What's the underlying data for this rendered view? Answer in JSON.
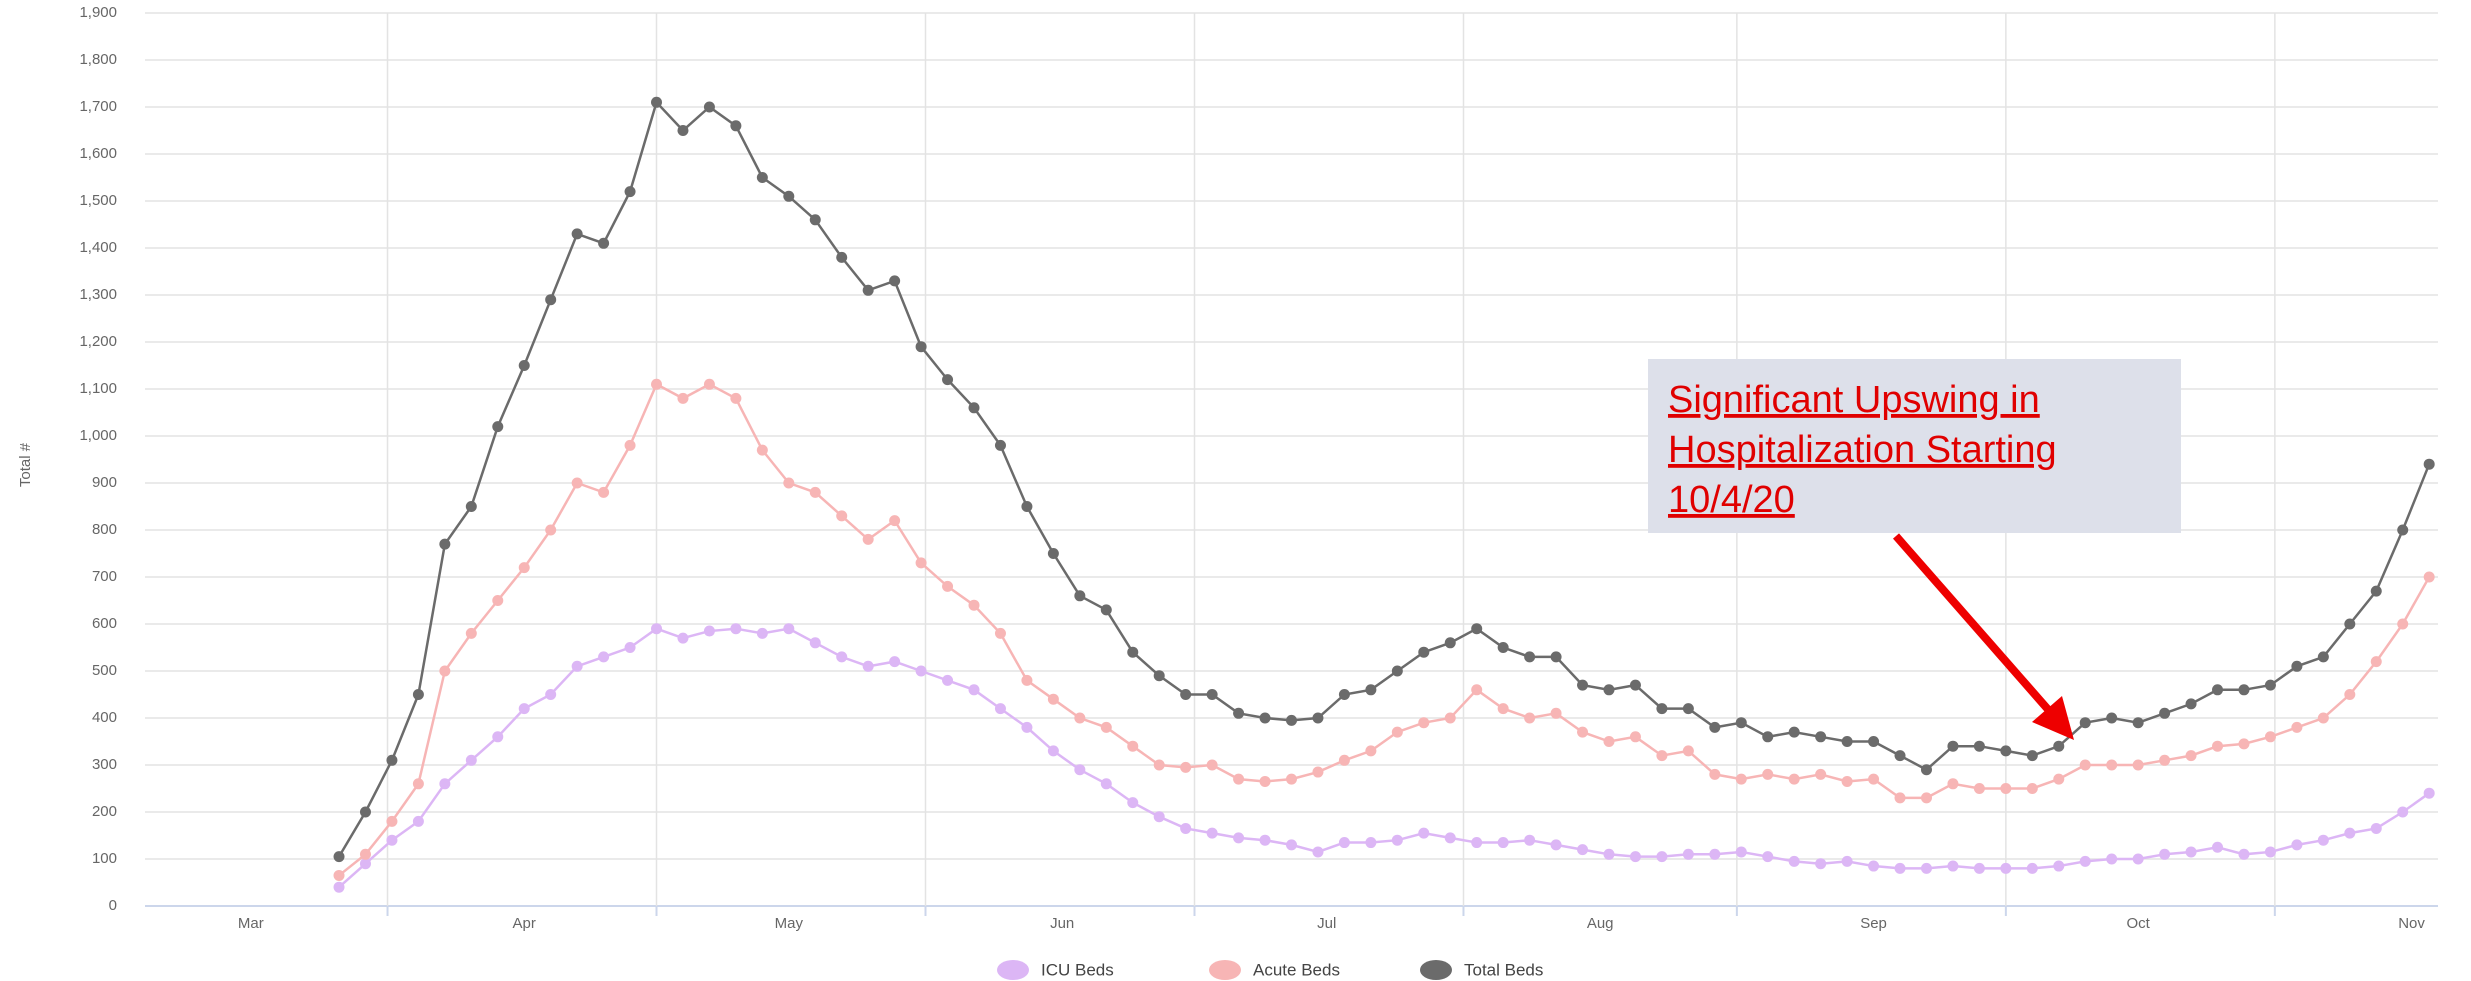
{
  "chart_data": {
    "type": "line",
    "y_label": "Total #",
    "xlim": [
      3,
      263
    ],
    "xticks": [
      {
        "value": 15,
        "label": "Mar"
      },
      {
        "value": 46,
        "label": "Apr"
      },
      {
        "value": 76,
        "label": "May"
      },
      {
        "value": 107,
        "label": "Jun"
      },
      {
        "value": 137,
        "label": "Jul"
      },
      {
        "value": 168,
        "label": "Aug"
      },
      {
        "value": 199,
        "label": "Sep"
      },
      {
        "value": 229,
        "label": "Oct"
      },
      {
        "value": 260,
        "label": "Nov"
      }
    ],
    "ylim": [
      0,
      1900
    ],
    "yticks": [
      0,
      100,
      200,
      300,
      400,
      500,
      600,
      700,
      800,
      900,
      {
        "value": 1000,
        "label": "1,000"
      },
      {
        "value": 1100,
        "label": "1,100"
      },
      {
        "value": 1200,
        "label": "1,200"
      },
      {
        "value": 1300,
        "label": "1,300"
      },
      {
        "value": 1400,
        "label": "1,400"
      },
      {
        "value": 1500,
        "label": "1,500"
      },
      {
        "value": 1600,
        "label": "1,600"
      },
      {
        "value": 1700,
        "label": "1,700"
      },
      {
        "value": 1800,
        "label": "1,800"
      },
      {
        "value": 1900,
        "label": "1,900"
      }
    ],
    "grid": true,
    "x": [
      25,
      28,
      31,
      34,
      37,
      40,
      43,
      46,
      49,
      52,
      55,
      58,
      61,
      64,
      67,
      70,
      73,
      76,
      79,
      82,
      85,
      88,
      91,
      94,
      97,
      100,
      103,
      106,
      109,
      112,
      115,
      118,
      121,
      124,
      127,
      130,
      133,
      136,
      139,
      142,
      145,
      148,
      151,
      154,
      157,
      160,
      163,
      166,
      169,
      172,
      175,
      178,
      181,
      184,
      187,
      190,
      193,
      196,
      199,
      202,
      205,
      208,
      211,
      214,
      217,
      220,
      223,
      226,
      229,
      232,
      235,
      238,
      241,
      244,
      247,
      250,
      253,
      256,
      259,
      262
    ],
    "series": [
      {
        "name": "ICU Beds",
        "color": "#dcb6f5",
        "values": [
          40,
          90,
          140,
          180,
          260,
          310,
          360,
          420,
          450,
          510,
          530,
          550,
          590,
          570,
          585,
          590,
          580,
          590,
          560,
          530,
          510,
          520,
          500,
          480,
          460,
          420,
          380,
          330,
          290,
          260,
          220,
          190,
          165,
          155,
          145,
          140,
          130,
          115,
          135,
          135,
          140,
          155,
          145,
          135,
          135,
          140,
          130,
          120,
          110,
          105,
          105,
          110,
          110,
          115,
          105,
          95,
          90,
          95,
          85,
          80,
          80,
          85,
          80,
          80,
          80,
          85,
          95,
          100,
          100,
          110,
          115,
          125,
          110,
          115,
          130,
          140,
          155,
          165,
          200,
          240
        ]
      },
      {
        "name": "Acute Beds",
        "color": "#f7b5b5",
        "values": [
          65,
          110,
          180,
          260,
          500,
          580,
          650,
          720,
          800,
          900,
          880,
          980,
          1110,
          1080,
          1110,
          1080,
          970,
          900,
          880,
          830,
          780,
          820,
          730,
          680,
          640,
          580,
          480,
          440,
          400,
          380,
          340,
          300,
          295,
          300,
          270,
          265,
          270,
          285,
          310,
          330,
          370,
          390,
          400,
          460,
          420,
          400,
          410,
          370,
          350,
          360,
          320,
          330,
          280,
          270,
          280,
          270,
          280,
          265,
          270,
          230,
          230,
          260,
          250,
          250,
          250,
          270,
          300,
          300,
          300,
          310,
          320,
          340,
          345,
          360,
          380,
          400,
          450,
          520,
          600,
          700
        ]
      },
      {
        "name": "Total Beds",
        "color": "#6b6b6b",
        "values": [
          105,
          200,
          310,
          450,
          770,
          850,
          1020,
          1150,
          1290,
          1430,
          1410,
          1520,
          1710,
          1650,
          1700,
          1660,
          1550,
          1510,
          1460,
          1380,
          1310,
          1330,
          1190,
          1120,
          1060,
          980,
          850,
          750,
          660,
          630,
          540,
          490,
          450,
          450,
          410,
          400,
          395,
          400,
          450,
          460,
          500,
          540,
          560,
          590,
          550,
          530,
          530,
          470,
          460,
          470,
          420,
          420,
          380,
          390,
          360,
          370,
          360,
          350,
          350,
          320,
          290,
          340,
          340,
          330,
          320,
          340,
          390,
          400,
          390,
          410,
          430,
          460,
          460,
          470,
          510,
          530,
          600,
          670,
          800,
          940
        ]
      }
    ],
    "annotation": {
      "lines": [
        "Significant Upswing in",
        "Hospitalization Starting",
        "10/4/20"
      ]
    }
  }
}
